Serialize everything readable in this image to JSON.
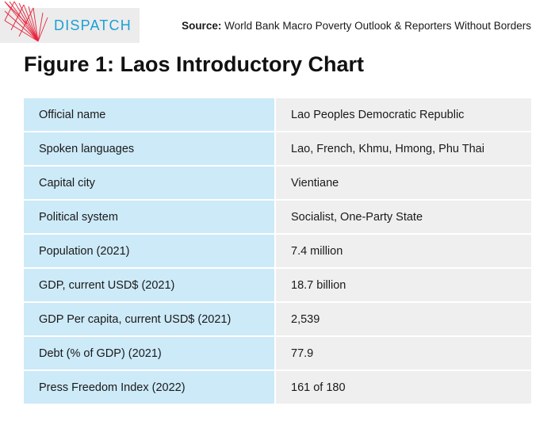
{
  "brand": {
    "name": "DISPATCH",
    "logo_icon": "red-line-fan-logo",
    "brand_color": "#1aa0d6",
    "logo_color": "#e8243c"
  },
  "source": {
    "label": "Source:",
    "text": "World Bank Macro Poverty Outlook & Reporters Without Borders"
  },
  "title": "Figure 1: Laos Introductory Chart",
  "colors": {
    "label_cell_bg": "#cdeaf8",
    "value_cell_bg": "#efefef"
  },
  "rows": [
    {
      "label": "Official name",
      "value": "Lao Peoples Democratic Republic"
    },
    {
      "label": "Spoken languages",
      "value": "Lao, French, Khmu, Hmong, Phu Thai"
    },
    {
      "label": "Capital city",
      "value": "Vientiane"
    },
    {
      "label": "Political system",
      "value": "Socialist, One-Party State"
    },
    {
      "label": "Population (2021)",
      "value": "7.4 million"
    },
    {
      "label": "GDP, current USD$ (2021)",
      "value": "18.7 billion"
    },
    {
      "label": "GDP Per capita, current USD$ (2021)",
      "value": "2,539"
    },
    {
      "label": "Debt (% of GDP) (2021)",
      "value": "77.9"
    },
    {
      "label": "Press Freedom Index (2022)",
      "value": "161 of 180"
    }
  ]
}
